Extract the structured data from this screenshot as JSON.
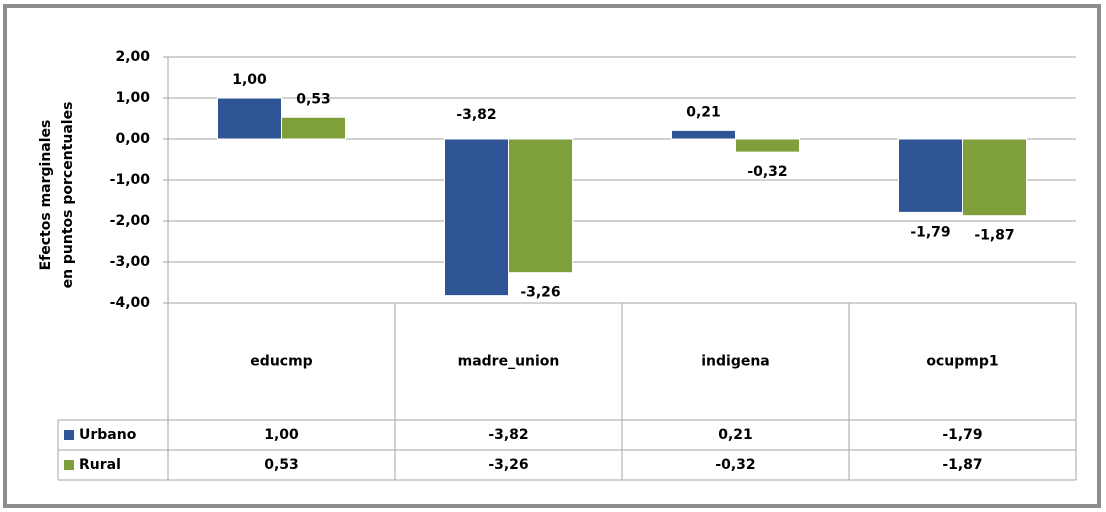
{
  "chart_data": {
    "type": "bar",
    "ylabel": [
      "Efectos marginales",
      "en puntos porcentuales"
    ],
    "categories": [
      "educmp",
      "madre_union",
      "indigena",
      "ocupmp1"
    ],
    "series": [
      {
        "name": "Urbano",
        "color": "#2f5597",
        "values": [
          1.0,
          -3.82,
          0.21,
          -1.79
        ],
        "value_labels": [
          "1,00",
          "-3,82",
          "0,21",
          "-1,79"
        ]
      },
      {
        "name": "Rural",
        "color": "#7f9f3a",
        "values": [
          0.53,
          -3.26,
          -0.32,
          -1.87
        ],
        "value_labels": [
          "0,53",
          "-3,26",
          "-0,32",
          "-1,87"
        ]
      }
    ],
    "ylim": [
      -4,
      2
    ],
    "yticks": [
      {
        "value": -4,
        "label": "-4,00"
      },
      {
        "value": -3,
        "label": "-3,00"
      },
      {
        "value": -2,
        "label": "-2,00"
      },
      {
        "value": -1,
        "label": "-1,00"
      },
      {
        "value": 0,
        "label": "0,00"
      },
      {
        "value": 1,
        "label": "1,00"
      },
      {
        "value": 2,
        "label": "2,00"
      }
    ],
    "grid": true,
    "data_table": true
  }
}
